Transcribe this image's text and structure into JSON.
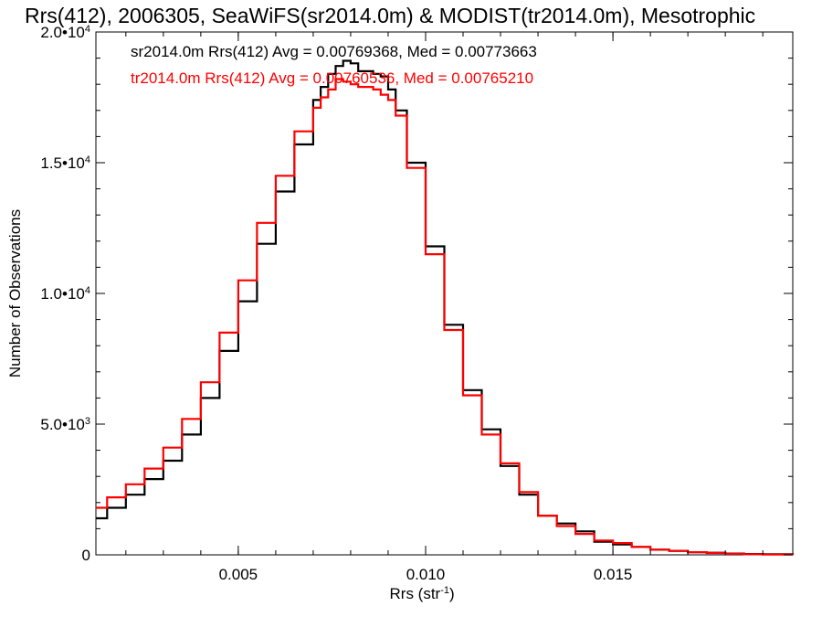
{
  "chart_data": {
    "type": "line",
    "title": "Rrs(412), 2006305, SeaWiFS(sr2014.0m) & MODIST(tr2014.0m), Mesotrophic",
    "xlabel": "Rrs (str",
    "xlabel_sup": "-1",
    "xlabel_close": ")",
    "ylabel": "Number of Observations",
    "xlim": [
      0.0012,
      0.0198
    ],
    "ylim": [
      0,
      20000
    ],
    "xticks": [
      {
        "value": 0.005,
        "label": "0.005"
      },
      {
        "value": 0.01,
        "label": "0.010"
      },
      {
        "value": 0.015,
        "label": "0.015"
      }
    ],
    "yticks": [
      {
        "value": 0,
        "label": "0",
        "sup": ""
      },
      {
        "value": 5000,
        "label": "5.0•10",
        "sup": "3"
      },
      {
        "value": 10000,
        "label": "1.0•10",
        "sup": "4"
      },
      {
        "value": 15000,
        "label": "1.5•10",
        "sup": "4"
      },
      {
        "value": 20000,
        "label": "2.0•10",
        "sup": "4"
      }
    ],
    "annotations": [
      {
        "text": "sr2014.0m Rrs(412) Avg = 0.00769368, Med = 0.00773663",
        "color": "#000000"
      },
      {
        "text": "tr2014.0m Rrs(412) Avg = 0.00760536, Med = 0.00765210",
        "color": "#ff0000"
      }
    ],
    "series": [
      {
        "color": "#000000",
        "x": [
          0.0012,
          0.0015,
          0.002,
          0.0025,
          0.003,
          0.0035,
          0.004,
          0.0045,
          0.005,
          0.0055,
          0.006,
          0.0065,
          0.007,
          0.0072,
          0.0074,
          0.0076,
          0.0078,
          0.008,
          0.0082,
          0.0084,
          0.0086,
          0.0088,
          0.009,
          0.0092,
          0.0095,
          0.01,
          0.0105,
          0.011,
          0.0115,
          0.012,
          0.0125,
          0.013,
          0.0135,
          0.014,
          0.0145,
          0.015,
          0.0155,
          0.016,
          0.0165,
          0.017,
          0.0175,
          0.018,
          0.0185,
          0.019,
          0.0198
        ],
        "y": [
          1400,
          1800,
          2300,
          2900,
          3600,
          4600,
          6000,
          7800,
          9700,
          11900,
          13900,
          15700,
          17400,
          17900,
          18400,
          18700,
          18900,
          18800,
          18500,
          18500,
          18400,
          18300,
          17800,
          17000,
          15000,
          11800,
          8800,
          6300,
          4800,
          3400,
          2300,
          1500,
          1200,
          900,
          500,
          400,
          300,
          200,
          150,
          100,
          80,
          50,
          30,
          20,
          10
        ]
      },
      {
        "color": "#ff0000",
        "x": [
          0.0012,
          0.0015,
          0.002,
          0.0025,
          0.003,
          0.0035,
          0.004,
          0.0045,
          0.005,
          0.0055,
          0.006,
          0.0065,
          0.007,
          0.0072,
          0.0074,
          0.0076,
          0.0078,
          0.008,
          0.0082,
          0.0084,
          0.0086,
          0.0088,
          0.009,
          0.0092,
          0.0095,
          0.01,
          0.0105,
          0.011,
          0.0115,
          0.012,
          0.0125,
          0.013,
          0.0135,
          0.014,
          0.0145,
          0.015,
          0.0155,
          0.016,
          0.0165,
          0.017,
          0.0175,
          0.018,
          0.0185,
          0.019,
          0.0198
        ],
        "y": [
          1800,
          2200,
          2700,
          3300,
          4100,
          5200,
          6600,
          8500,
          10500,
          12700,
          14500,
          16200,
          17100,
          17500,
          17800,
          18200,
          18100,
          18000,
          17900,
          17900,
          17800,
          17600,
          17400,
          16800,
          14800,
          11500,
          8600,
          6100,
          4600,
          3500,
          2400,
          1500,
          1100,
          800,
          550,
          450,
          300,
          200,
          150,
          100,
          70,
          40,
          20,
          10,
          5
        ]
      }
    ]
  }
}
